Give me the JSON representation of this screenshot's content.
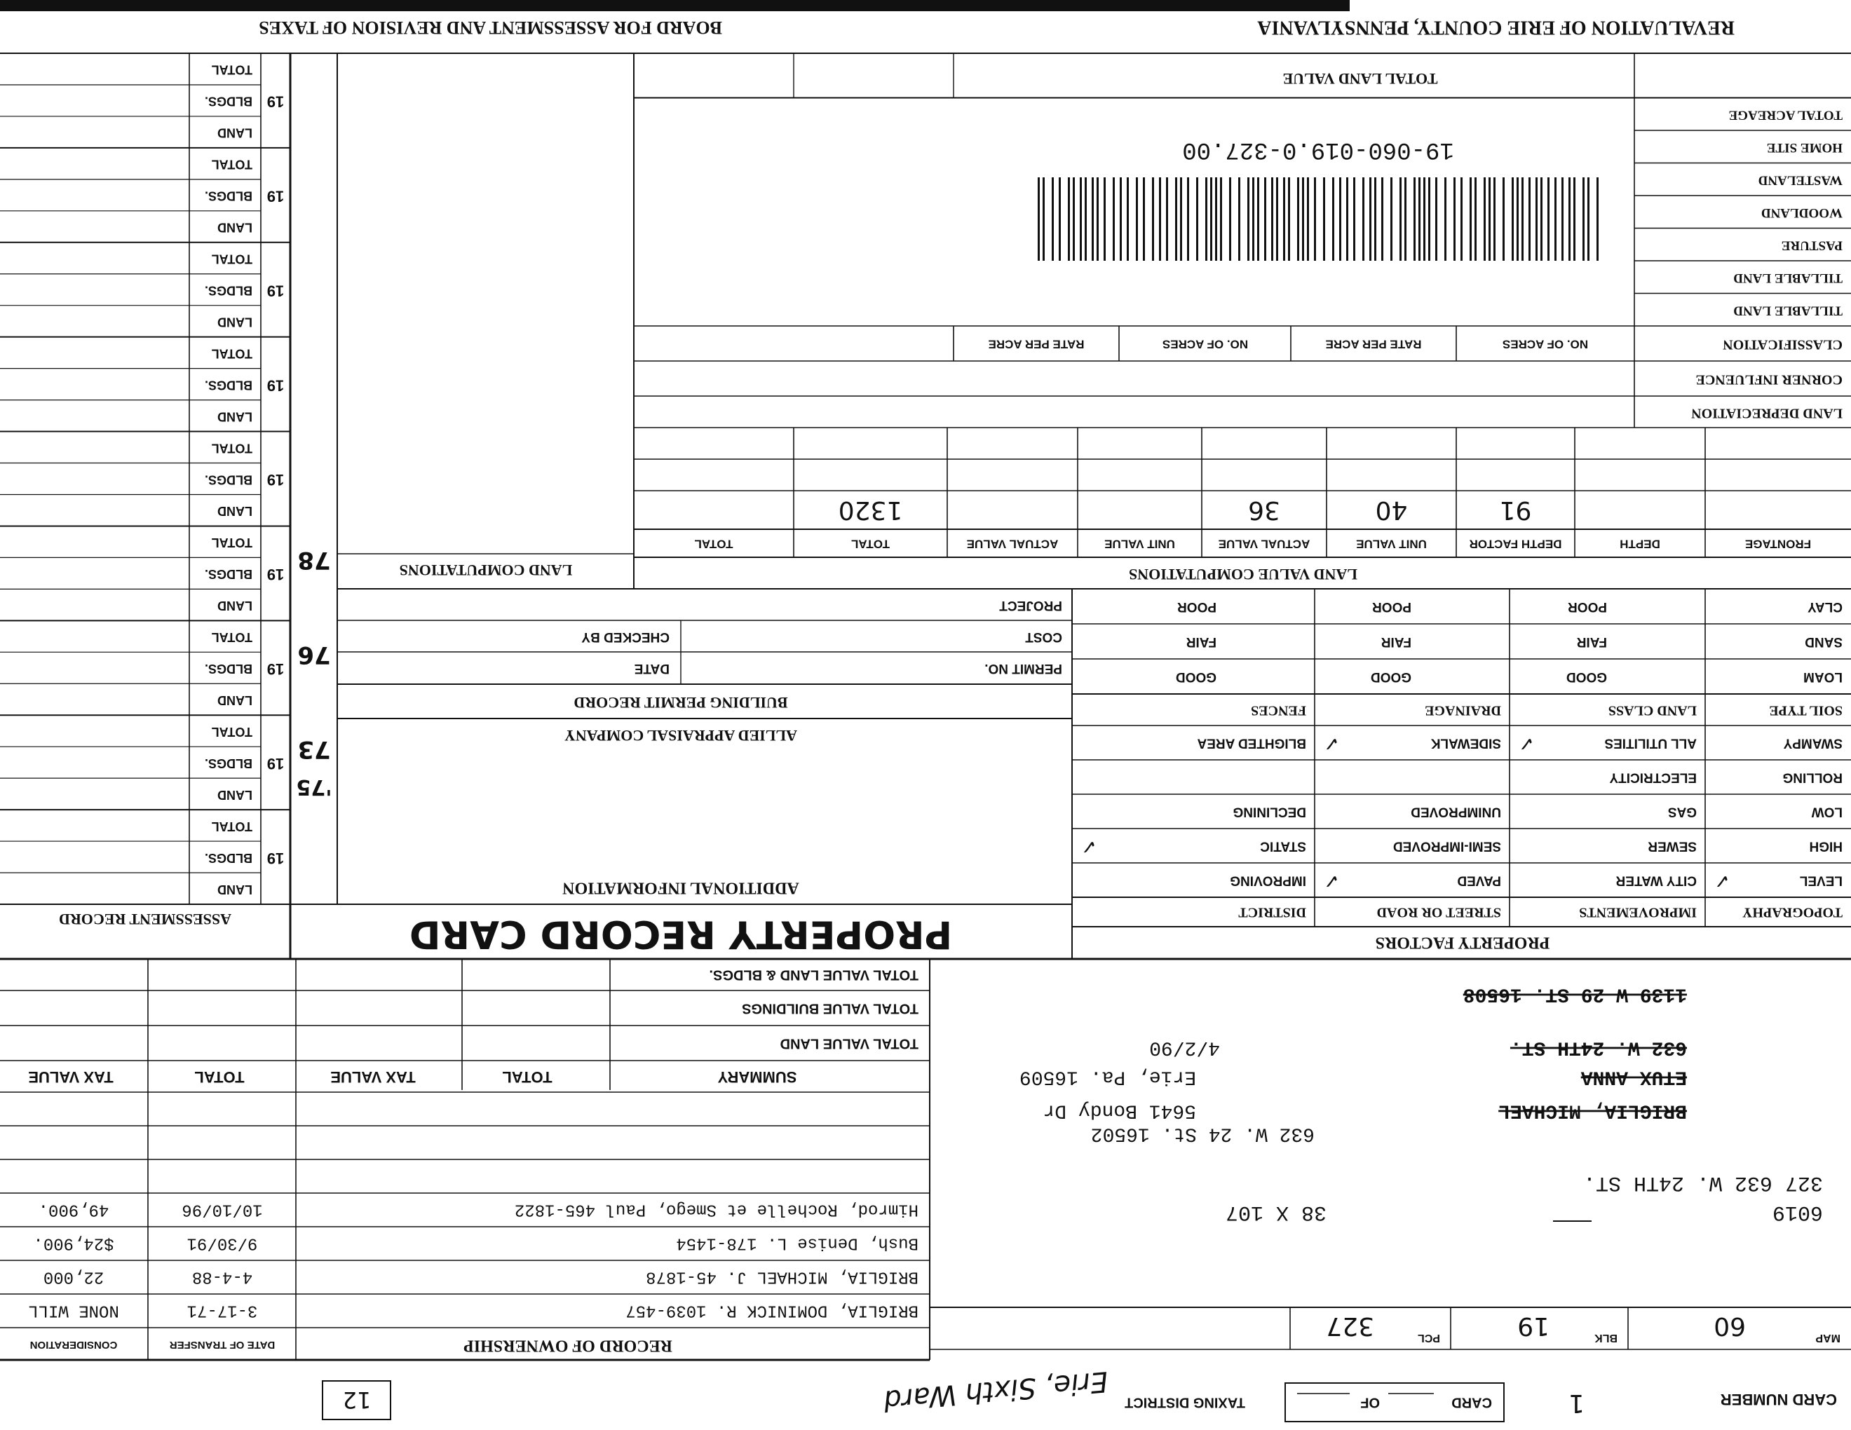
{
  "header": {
    "card_number_label": "CARD NUMBER",
    "card_number": "1",
    "card_label": "CARD",
    "of_label": "OF",
    "taxing_district_label": "TAXING DISTRICT",
    "taxing_district": "Erie, Sixth Ward",
    "box_number": "12"
  },
  "parcel": {
    "map_label": "MAP",
    "map": "60",
    "blk_label": "BLK",
    "blk": "19",
    "pcl_label": "PCL",
    "pcl": "327",
    "lot_number": "6019",
    "lot_size": "38 X 107",
    "address_line": "327   632 W. 24TH ST."
  },
  "owner_addresses": [
    {
      "text": "BRIGLIA, MICHAEL",
      "struck": true
    },
    {
      "text": "ETUX ANNA",
      "struck": true
    },
    {
      "text": "632 W. 24TH ST.",
      "struck": true
    },
    {
      "text": "1139 W 29 ST. 16508",
      "struck": true
    },
    {
      "text": "632 W. 24 St.   16502",
      "struck": false
    },
    {
      "text": "5641 Bondy Dr",
      "struck": false
    },
    {
      "text": "Erie, Pa.   16509",
      "struck": false
    },
    {
      "text": "4/2/90",
      "struck": false
    }
  ],
  "ownership": {
    "title": "RECORD OF OWNERSHIP",
    "columns": [
      "DATE OF TRANSFER",
      "CONSIDERATION"
    ],
    "rows": [
      [
        "BRIGLIA, DOMINICK R.   1039-457",
        "3-17-71",
        "NONE WILL"
      ],
      [
        "BRIGLIA, MICHAEL J.      45-1878",
        "4-4-88",
        "22,000"
      ],
      [
        "Bush, Denise L.          178-1454",
        "9/30/91",
        "$24,900."
      ],
      [
        "Himrod, Rochelle et Smego, Paul   465-1822",
        "10/10/96",
        "49,900."
      ]
    ]
  },
  "summary": {
    "columns": [
      "SUMMARY",
      "TOTAL",
      "TAX VALUE",
      "TOTAL",
      "TAX VALUE"
    ],
    "rows": [
      "TOTAL VALUE LAND",
      "TOTAL VALUE BUILDINGS",
      "TOTAL VALUE LAND & BLDGS."
    ]
  },
  "title": "PROPERTY RECORD CARD",
  "property_factors": {
    "title": "PROPERTY FACTORS",
    "check_mark": "✓",
    "header": [
      "TOPOGRAPHY",
      "IMPROVEMENTS",
      "STREET OR ROAD",
      "DISTRICT"
    ],
    "rows": [
      [
        "LEVEL",
        "CITY WATER",
        "PAVED",
        "IMPROVING"
      ],
      [
        "HIGH",
        "SEWER",
        "SEMI-IMPROVED",
        "STATIC"
      ],
      [
        "LOW",
        "GAS",
        "UNIMPROVED",
        "DECLINING"
      ],
      [
        "ROLLING",
        "ELECTRICITY",
        null,
        null
      ],
      [
        "SWAMPY",
        "ALL UTILITIES",
        "SIDEWALK",
        "BLIGHTED AREA"
      ]
    ],
    "checked": [
      [
        true,
        false,
        true,
        false
      ],
      [
        false,
        false,
        false,
        true
      ],
      [
        false,
        false,
        false,
        false
      ],
      [
        false,
        false,
        false,
        false
      ],
      [
        false,
        true,
        true,
        false
      ]
    ],
    "soil_header": [
      "SOIL TYPE",
      "LAND CLASS",
      "DRAINAGE",
      "FENCES"
    ],
    "soil_rows": [
      [
        "LOAM",
        "GOOD",
        "GOOD",
        "GOOD"
      ],
      [
        "SAND",
        "FAIR",
        "FAIR",
        "FAIR"
      ],
      [
        "CLAY",
        "POOR",
        "POOR",
        "POOR"
      ]
    ]
  },
  "land_value": {
    "title": "LAND VALUE COMPUTATIONS",
    "columns": [
      "FRONTAGE",
      "DEPTH",
      "DEPTH FACTOR",
      "UNIT VALUE",
      "ACTUAL VALUE",
      "UNIT VALUE",
      "ACTUAL VALUE",
      "TOTAL",
      "TOTAL"
    ],
    "entries": [
      null,
      null,
      "91",
      "40",
      "36",
      null,
      null,
      "1320",
      null
    ],
    "land_depreciation": "LAND DEPRECIATION",
    "corner_influence": "CORNER INFLUENCE"
  },
  "classification": {
    "columns": [
      "CLASSIFICATION",
      "NO. OF ACRES",
      "RATE PER ACRE",
      "NO. OF ACRES",
      "RATE PER ACRE"
    ],
    "rows": [
      "TILLABLE LAND",
      "TILLABLE LAND",
      "PASTURE",
      "WOODLAND",
      "WASTELAND",
      "HOME SITE",
      "TOTAL ACREAGE"
    ],
    "total_land_value": "TOTAL LAND VALUE",
    "parcel_id": "19-060-019.0-327.00"
  },
  "land_computations": "LAND COMPUTATIONS",
  "additional": {
    "title": "ADDITIONAL INFORMATION",
    "company": "ALLIED APPRAISAL COMPANY",
    "permit_title": "BUILDING PERMIT RECORD",
    "permit_no": "PERMIT NO.",
    "date": "DATE",
    "cost": "COST",
    "checked_by": "CHECKED BY",
    "project": "PROJECT"
  },
  "assessment": {
    "title": "ASSESSMENT RECORD",
    "year_prefix": "19",
    "row_labels": [
      "LAND",
      "BLDGS.",
      "TOTAL"
    ],
    "years": [
      null,
      "73",
      "76",
      "78",
      null,
      null,
      null,
      null,
      null
    ],
    "year_note": "'75"
  },
  "footer": {
    "revaluation": "REVALUATION OF ERIE COUNTY, PENNSYLVANIA",
    "board": "BOARD FOR ASSESSMENT AND REVISION OF TAXES"
  }
}
